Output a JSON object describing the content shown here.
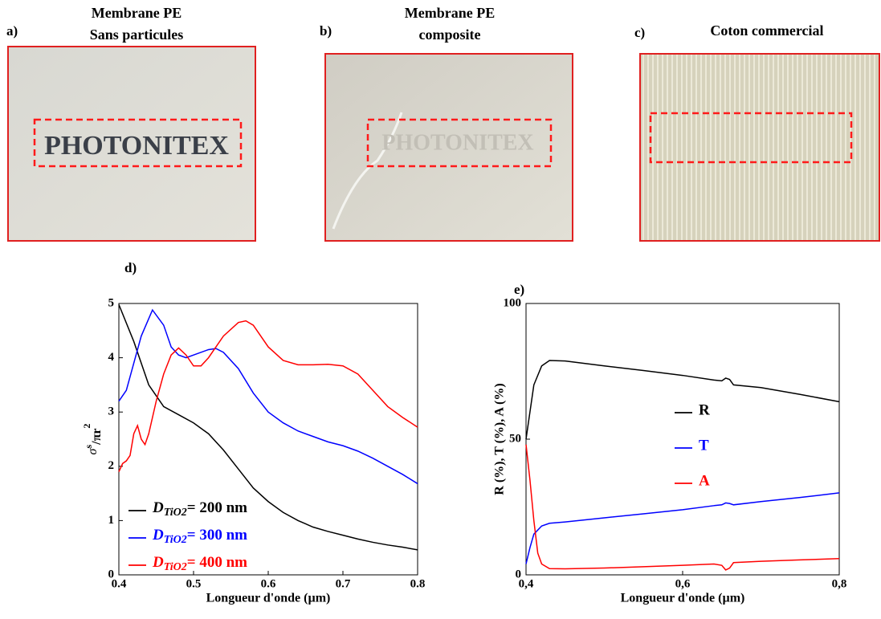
{
  "photos": [
    {
      "panel": "a)",
      "caption": [
        "Membrane PE",
        "Sans particules"
      ],
      "text": "PHOTONITEX"
    },
    {
      "panel": "b)",
      "caption": [
        "Membrane PE",
        "composite"
      ],
      "text": "PHOTONITEX"
    },
    {
      "panel": "c)",
      "caption": [
        "Coton commercial"
      ]
    }
  ],
  "chart_data": [
    {
      "type": "line",
      "panel": "d)",
      "x_label": "Longueur d'onde (µm)",
      "y_label": [
        "σ",
        "s",
        "/πr",
        "2"
      ],
      "xlim": [
        0.4,
        0.8
      ],
      "xticks": [
        0.4,
        0.5,
        0.6,
        0.7,
        0.8
      ],
      "ylim": [
        0,
        5
      ],
      "yticks": [
        0,
        1,
        2,
        3,
        4,
        5
      ],
      "legend": "lower left",
      "series": [
        {
          "name": [
            "D",
            "TiO2",
            "= 200 nm"
          ],
          "color": "#000000",
          "x": [
            0.4,
            0.42,
            0.44,
            0.46,
            0.48,
            0.5,
            0.52,
            0.54,
            0.56,
            0.58,
            0.6,
            0.62,
            0.64,
            0.66,
            0.68,
            0.7,
            0.72,
            0.74,
            0.76,
            0.78,
            0.8
          ],
          "values": [
            4.98,
            4.3,
            3.5,
            3.1,
            2.95,
            2.8,
            2.6,
            2.3,
            1.95,
            1.6,
            1.35,
            1.15,
            1.0,
            0.88,
            0.8,
            0.73,
            0.66,
            0.6,
            0.55,
            0.51,
            0.46
          ]
        },
        {
          "name": [
            "D",
            "TiO2",
            "= 300 nm"
          ],
          "color": "#0000ff",
          "x": [
            0.4,
            0.41,
            0.42,
            0.43,
            0.445,
            0.46,
            0.47,
            0.48,
            0.49,
            0.5,
            0.52,
            0.53,
            0.54,
            0.56,
            0.58,
            0.6,
            0.62,
            0.64,
            0.66,
            0.68,
            0.7,
            0.72,
            0.74,
            0.76,
            0.78,
            0.8
          ],
          "values": [
            3.2,
            3.4,
            3.9,
            4.4,
            4.88,
            4.6,
            4.2,
            4.05,
            4.0,
            4.05,
            4.15,
            4.17,
            4.1,
            3.8,
            3.35,
            3.0,
            2.8,
            2.65,
            2.55,
            2.45,
            2.38,
            2.28,
            2.15,
            2.0,
            1.85,
            1.68
          ]
        },
        {
          "name": [
            "D",
            "TiO2",
            "= 400 nm"
          ],
          "color": "#ff0000",
          "x": [
            0.4,
            0.405,
            0.41,
            0.415,
            0.42,
            0.425,
            0.43,
            0.435,
            0.44,
            0.45,
            0.46,
            0.47,
            0.48,
            0.49,
            0.5,
            0.51,
            0.52,
            0.54,
            0.56,
            0.57,
            0.58,
            0.6,
            0.62,
            0.64,
            0.66,
            0.68,
            0.7,
            0.72,
            0.74,
            0.76,
            0.78,
            0.8
          ],
          "values": [
            1.9,
            2.05,
            2.1,
            2.2,
            2.6,
            2.75,
            2.5,
            2.4,
            2.6,
            3.2,
            3.7,
            4.05,
            4.18,
            4.05,
            3.85,
            3.85,
            4.0,
            4.4,
            4.65,
            4.68,
            4.6,
            4.2,
            3.95,
            3.87,
            3.87,
            3.88,
            3.85,
            3.7,
            3.4,
            3.1,
            2.9,
            2.72
          ]
        }
      ]
    },
    {
      "type": "line",
      "panel": "e)",
      "x_label": "Longueur d'onde (µm)",
      "y_label": "R (%), T (%), A (%)",
      "xlim": [
        0.4,
        0.8
      ],
      "xticks": [
        {
          "value": 0.4,
          "label": "0,4"
        },
        {
          "value": 0.6,
          "label": "0,6"
        },
        {
          "value": 0.8,
          "label": "0,8"
        }
      ],
      "ylim": [
        0,
        100
      ],
      "yticks": [
        0,
        50,
        100
      ],
      "legend": "center",
      "series": [
        {
          "name": "R",
          "color": "#000000",
          "x": [
            0.4,
            0.405,
            0.41,
            0.42,
            0.43,
            0.45,
            0.5,
            0.55,
            0.6,
            0.64,
            0.65,
            0.655,
            0.66,
            0.665,
            0.7,
            0.75,
            0.8
          ],
          "values": [
            50,
            60,
            70,
            77,
            79,
            78.8,
            77,
            75.3,
            73.5,
            71.8,
            71.5,
            72.5,
            72,
            70,
            69,
            66.5,
            63.8
          ]
        },
        {
          "name": "T",
          "color": "#0000ff",
          "x": [
            0.4,
            0.405,
            0.41,
            0.42,
            0.43,
            0.45,
            0.5,
            0.55,
            0.6,
            0.64,
            0.65,
            0.655,
            0.66,
            0.665,
            0.7,
            0.75,
            0.8
          ],
          "values": [
            4,
            10,
            15,
            18,
            19,
            19.5,
            21,
            22.5,
            24,
            25.5,
            25.8,
            26.5,
            26.3,
            25.8,
            27,
            28.5,
            30.2
          ]
        },
        {
          "name": "A",
          "color": "#ff0000",
          "x": [
            0.4,
            0.405,
            0.41,
            0.415,
            0.42,
            0.43,
            0.45,
            0.5,
            0.55,
            0.6,
            0.64,
            0.65,
            0.655,
            0.66,
            0.665,
            0.7,
            0.75,
            0.8
          ],
          "values": [
            48,
            35,
            20,
            8,
            4,
            2.3,
            2.2,
            2.5,
            3,
            3.5,
            4,
            3.5,
            1.8,
            2.5,
            4.5,
            5,
            5.5,
            6
          ]
        }
      ]
    }
  ]
}
